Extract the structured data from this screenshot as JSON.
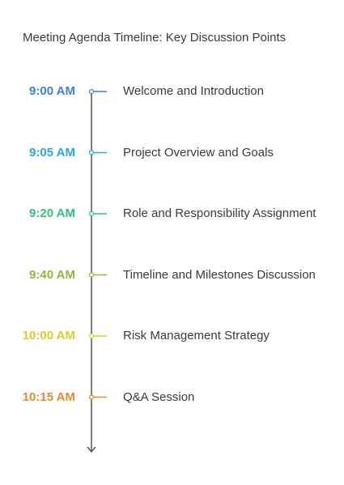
{
  "title": "Meeting Agenda Timeline: Key Discussion Points",
  "items": [
    {
      "time": "9:00 AM",
      "label": "Welcome and Introduction",
      "color": "#3c7fe0"
    },
    {
      "time": "9:05 AM",
      "label": "Project Overview and Goals",
      "color": "#27a9d6"
    },
    {
      "time": "9:20 AM",
      "label": "Role and Responsibility Assignment",
      "color": "#2fbf84"
    },
    {
      "time": "9:40 AM",
      "label": "Timeline and Milestones Discussion",
      "color": "#8cba3c"
    },
    {
      "time": "10:00 AM",
      "label": "Risk Management Strategy",
      "color": "#e2c72a"
    },
    {
      "time": "10:15 AM",
      "label": "Q&A Session",
      "color": "#e8892e"
    }
  ],
  "line_color": "#555555",
  "arrow_icon": "arrow-down-icon"
}
